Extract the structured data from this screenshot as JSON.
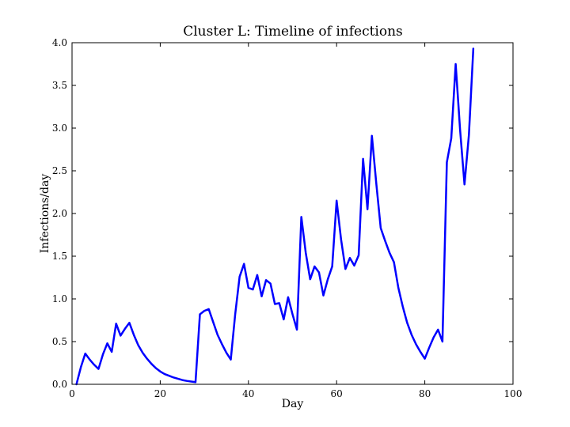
{
  "chart_data": {
    "type": "line",
    "title": "Cluster L: Timeline of infections",
    "xlabel": "Day",
    "ylabel": "Infections/day",
    "xlim": [
      0,
      100
    ],
    "ylim": [
      0,
      4.0
    ],
    "xticks": [
      "0",
      "20",
      "40",
      "60",
      "80",
      "100"
    ],
    "yticks": [
      "0.0",
      "0.5",
      "1.0",
      "1.5",
      "2.0",
      "2.5",
      "3.0",
      "3.5",
      "4.0"
    ],
    "grid": false,
    "series": [
      {
        "color": "#0000ff",
        "x": [
          1,
          2,
          3,
          4,
          5,
          6,
          7,
          8,
          9,
          10,
          11,
          12,
          13,
          14,
          15,
          16,
          17,
          18,
          19,
          20,
          21,
          22,
          23,
          24,
          25,
          26,
          27,
          28,
          29,
          30,
          31,
          32,
          33,
          34,
          35,
          36,
          37,
          38,
          39,
          40,
          41,
          42,
          43,
          44,
          45,
          46,
          47,
          48,
          49,
          50,
          51,
          52,
          53,
          54,
          55,
          56,
          57,
          58,
          59,
          60,
          61,
          62,
          63,
          64,
          65,
          66,
          67,
          68,
          69,
          70,
          71,
          72,
          73,
          74,
          75,
          76,
          77,
          78,
          79,
          80,
          81,
          82,
          83,
          84,
          85,
          86,
          87,
          88,
          89,
          90,
          91
        ],
        "y": [
          0.0,
          0.2,
          0.36,
          0.29,
          0.23,
          0.18,
          0.35,
          0.48,
          0.38,
          0.71,
          0.57,
          0.65,
          0.72,
          0.58,
          0.46,
          0.37,
          0.3,
          0.24,
          0.19,
          0.15,
          0.12,
          0.1,
          0.08,
          0.065,
          0.05,
          0.04,
          0.032,
          0.025,
          0.82,
          0.86,
          0.88,
          0.73,
          0.58,
          0.47,
          0.37,
          0.29,
          0.82,
          1.26,
          1.41,
          1.13,
          1.11,
          1.28,
          1.03,
          1.22,
          1.18,
          0.94,
          0.95,
          0.76,
          1.02,
          0.82,
          0.64,
          1.96,
          1.54,
          1.23,
          1.38,
          1.31,
          1.04,
          1.23,
          1.38,
          2.15,
          1.7,
          1.35,
          1.48,
          1.39,
          1.51,
          2.64,
          2.05,
          2.91,
          2.35,
          1.83,
          1.68,
          1.54,
          1.43,
          1.13,
          0.91,
          0.72,
          0.58,
          0.47,
          0.38,
          0.3,
          0.43,
          0.55,
          0.64,
          0.5,
          2.6,
          2.88,
          3.75,
          2.98,
          2.34,
          2.92,
          3.93
        ]
      }
    ]
  }
}
